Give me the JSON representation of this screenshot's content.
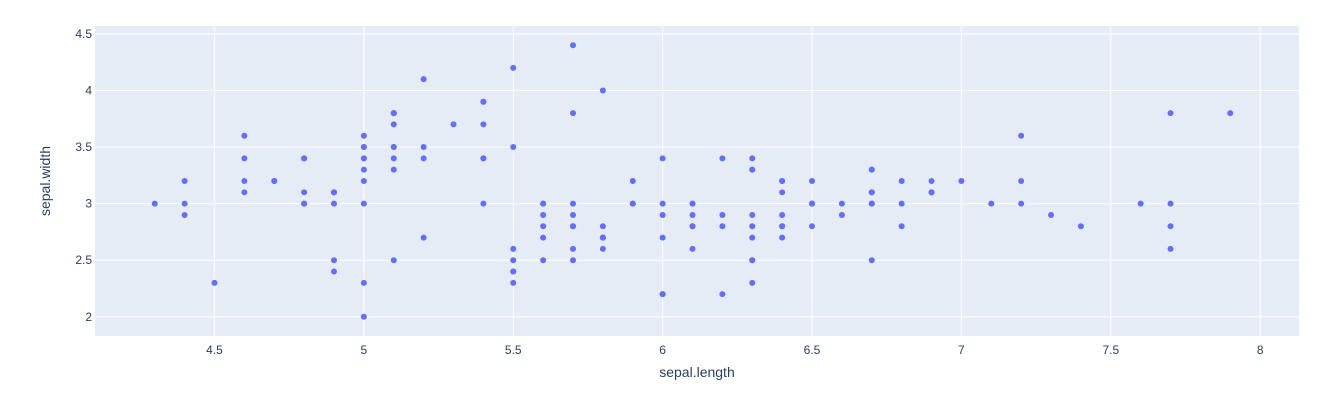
{
  "chart_data": {
    "type": "scatter",
    "title": "",
    "xlabel": "sepal.length",
    "ylabel": "sepal.width",
    "xlim": [
      4.1,
      8.13
    ],
    "ylim": [
      1.83,
      4.57
    ],
    "xticks": [
      4.5,
      5,
      5.5,
      6,
      6.5,
      7,
      7.5,
      8
    ],
    "yticks": [
      2,
      2.5,
      3,
      3.5,
      4,
      4.5
    ],
    "xtick_labels": [
      "4.5",
      "5",
      "5.5",
      "6",
      "6.5",
      "7",
      "7.5",
      "8"
    ],
    "ytick_labels": [
      "2",
      "2.5",
      "3",
      "3.5",
      "4",
      "4.5"
    ],
    "grid": true,
    "colors": {
      "marker": "#636efa",
      "plot_bg": "#e5ecf6",
      "grid": "#ffffff",
      "text": "#2a3f5f"
    },
    "points": [
      [
        5.1,
        3.5
      ],
      [
        4.9,
        3.0
      ],
      [
        4.7,
        3.2
      ],
      [
        4.6,
        3.1
      ],
      [
        5.0,
        3.6
      ],
      [
        5.4,
        3.9
      ],
      [
        4.6,
        3.4
      ],
      [
        5.0,
        3.4
      ],
      [
        4.4,
        2.9
      ],
      [
        4.9,
        3.1
      ],
      [
        5.4,
        3.7
      ],
      [
        4.8,
        3.4
      ],
      [
        4.8,
        3.0
      ],
      [
        4.3,
        3.0
      ],
      [
        5.8,
        4.0
      ],
      [
        5.7,
        4.4
      ],
      [
        5.4,
        3.9
      ],
      [
        5.1,
        3.5
      ],
      [
        5.7,
        3.8
      ],
      [
        5.1,
        3.8
      ],
      [
        5.4,
        3.4
      ],
      [
        5.1,
        3.7
      ],
      [
        4.6,
        3.6
      ],
      [
        5.1,
        3.3
      ],
      [
        4.8,
        3.4
      ],
      [
        5.0,
        3.0
      ],
      [
        5.0,
        3.4
      ],
      [
        5.2,
        3.5
      ],
      [
        5.2,
        3.4
      ],
      [
        4.7,
        3.2
      ],
      [
        4.8,
        3.1
      ],
      [
        5.4,
        3.4
      ],
      [
        5.2,
        4.1
      ],
      [
        5.5,
        4.2
      ],
      [
        4.9,
        3.1
      ],
      [
        5.0,
        3.2
      ],
      [
        5.5,
        3.5
      ],
      [
        4.9,
        3.1
      ],
      [
        4.4,
        3.0
      ],
      [
        5.1,
        3.4
      ],
      [
        5.0,
        3.5
      ],
      [
        4.5,
        2.3
      ],
      [
        4.4,
        3.2
      ],
      [
        5.0,
        3.5
      ],
      [
        5.1,
        3.8
      ],
      [
        4.8,
        3.0
      ],
      [
        5.1,
        3.8
      ],
      [
        4.6,
        3.2
      ],
      [
        5.3,
        3.7
      ],
      [
        5.0,
        3.3
      ],
      [
        7.0,
        3.2
      ],
      [
        6.4,
        3.2
      ],
      [
        6.9,
        3.1
      ],
      [
        5.5,
        2.3
      ],
      [
        6.5,
        2.8
      ],
      [
        5.7,
        2.8
      ],
      [
        6.3,
        3.3
      ],
      [
        4.9,
        2.4
      ],
      [
        6.6,
        2.9
      ],
      [
        5.2,
        2.7
      ],
      [
        5.0,
        2.0
      ],
      [
        5.9,
        3.0
      ],
      [
        6.0,
        2.2
      ],
      [
        6.1,
        2.9
      ],
      [
        5.6,
        2.9
      ],
      [
        6.7,
        3.1
      ],
      [
        5.6,
        3.0
      ],
      [
        5.8,
        2.7
      ],
      [
        6.2,
        2.2
      ],
      [
        5.6,
        2.5
      ],
      [
        5.9,
        3.2
      ],
      [
        6.1,
        2.8
      ],
      [
        6.3,
        2.5
      ],
      [
        6.1,
        2.8
      ],
      [
        6.4,
        2.9
      ],
      [
        6.6,
        3.0
      ],
      [
        6.8,
        2.8
      ],
      [
        6.7,
        3.0
      ],
      [
        6.0,
        2.9
      ],
      [
        5.7,
        2.6
      ],
      [
        5.5,
        2.4
      ],
      [
        5.5,
        2.4
      ],
      [
        5.8,
        2.7
      ],
      [
        6.0,
        2.7
      ],
      [
        5.4,
        3.0
      ],
      [
        6.0,
        3.4
      ],
      [
        6.7,
        3.1
      ],
      [
        6.3,
        2.3
      ],
      [
        5.6,
        3.0
      ],
      [
        5.5,
        2.5
      ],
      [
        5.5,
        2.6
      ],
      [
        6.1,
        3.0
      ],
      [
        5.8,
        2.6
      ],
      [
        5.0,
        2.3
      ],
      [
        5.6,
        2.7
      ],
      [
        5.7,
        3.0
      ],
      [
        5.7,
        2.9
      ],
      [
        6.2,
        2.9
      ],
      [
        5.1,
        2.5
      ],
      [
        5.7,
        2.8
      ],
      [
        6.3,
        3.3
      ],
      [
        5.8,
        2.7
      ],
      [
        7.1,
        3.0
      ],
      [
        6.3,
        2.9
      ],
      [
        6.5,
        3.0
      ],
      [
        7.6,
        3.0
      ],
      [
        4.9,
        2.5
      ],
      [
        7.3,
        2.9
      ],
      [
        6.7,
        2.5
      ],
      [
        7.2,
        3.6
      ],
      [
        6.5,
        3.2
      ],
      [
        6.4,
        2.7
      ],
      [
        6.8,
        3.0
      ],
      [
        5.7,
        2.5
      ],
      [
        5.8,
        2.8
      ],
      [
        6.4,
        3.2
      ],
      [
        6.5,
        3.0
      ],
      [
        7.7,
        3.8
      ],
      [
        7.7,
        2.6
      ],
      [
        6.0,
        2.2
      ],
      [
        6.9,
        3.2
      ],
      [
        5.6,
        2.8
      ],
      [
        7.7,
        2.8
      ],
      [
        6.3,
        2.7
      ],
      [
        6.7,
        3.3
      ],
      [
        7.2,
        3.2
      ],
      [
        6.2,
        2.8
      ],
      [
        6.1,
        3.0
      ],
      [
        6.4,
        2.8
      ],
      [
        7.2,
        3.0
      ],
      [
        7.4,
        2.8
      ],
      [
        7.9,
        3.8
      ],
      [
        6.4,
        2.8
      ],
      [
        6.3,
        2.8
      ],
      [
        6.1,
        2.6
      ],
      [
        7.7,
        3.0
      ],
      [
        6.3,
        3.4
      ],
      [
        6.4,
        3.1
      ],
      [
        6.0,
        3.0
      ],
      [
        6.9,
        3.1
      ],
      [
        6.7,
        3.1
      ],
      [
        6.9,
        3.1
      ],
      [
        5.8,
        2.7
      ],
      [
        6.8,
        3.2
      ],
      [
        6.7,
        3.3
      ],
      [
        6.7,
        3.0
      ],
      [
        6.3,
        2.5
      ],
      [
        6.5,
        3.0
      ],
      [
        6.2,
        3.4
      ],
      [
        5.9,
        3.0
      ]
    ]
  }
}
